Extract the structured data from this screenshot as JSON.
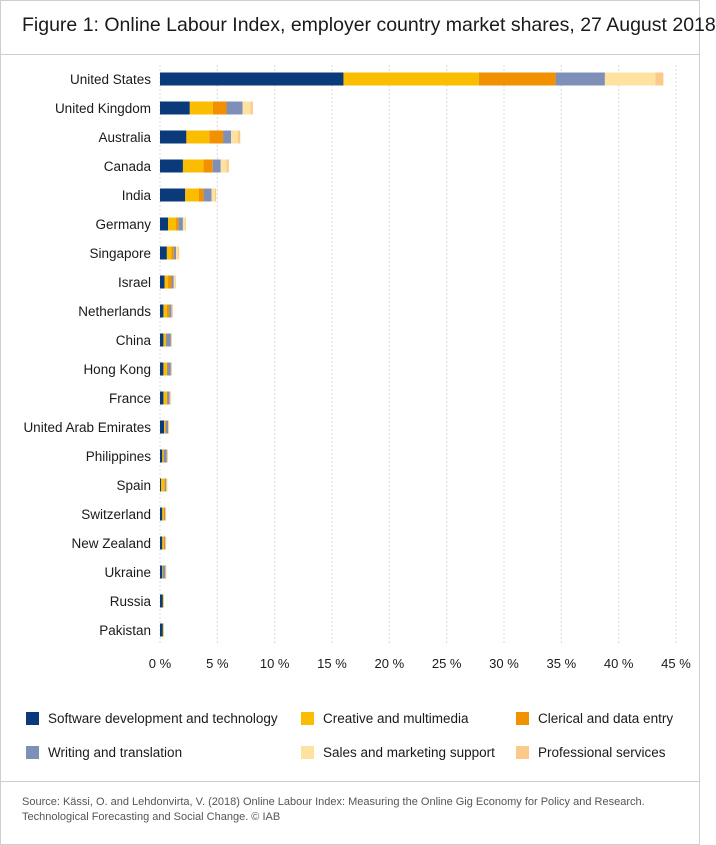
{
  "title": "Figure 1: Online Labour Index, employer country market shares, 27 August 2018",
  "source": "Source: Kässi, O. and Lehdonvirta, V. (2018) Online Labour Index: Measuring the Online Gig Economy for Policy and Research. Technological Forecasting and Social Change. © IAB",
  "chart_data": {
    "type": "bar",
    "orientation": "horizontal",
    "stacked": true,
    "title": "Figure 1: Online Labour Index, employer country market shares, 27 August 2018",
    "xlabel": "",
    "ylabel": "",
    "xlim": [
      0,
      45
    ],
    "x_ticks": [
      "0 %",
      "5 %",
      "10 %",
      "15 %",
      "20 %",
      "25 %",
      "30 %",
      "35 %",
      "40 %",
      "45 %"
    ],
    "grid": "vertical",
    "legend_position": "bottom",
    "categories": [
      "United States",
      "United Kingdom",
      "Australia",
      "Canada",
      "India",
      "Germany",
      "Singapore",
      "Israel",
      "Netherlands",
      "China",
      "Hong Kong",
      "France",
      "United Arab Emirates",
      "Philippines",
      "Spain",
      "Switzerland",
      "New Zealand",
      "Ukraine",
      "Russia",
      "Pakistan"
    ],
    "series": [
      {
        "name": "Software development and technology",
        "color": "#0b3a7a",
        "values": [
          16.0,
          2.6,
          2.3,
          2.0,
          2.2,
          0.7,
          0.6,
          0.4,
          0.3,
          0.3,
          0.3,
          0.3,
          0.35,
          0.2,
          0.1,
          0.2,
          0.2,
          0.2,
          0.25,
          0.25
        ]
      },
      {
        "name": "Creative and multimedia",
        "color": "#fbbd00",
        "values": [
          11.8,
          2.0,
          2.0,
          1.8,
          1.2,
          0.7,
          0.4,
          0.3,
          0.3,
          0.2,
          0.3,
          0.3,
          0.1,
          0.1,
          0.3,
          0.15,
          0.15,
          0.05,
          0.05,
          0.05
        ]
      },
      {
        "name": "Clerical and data entry",
        "color": "#f29100",
        "values": [
          6.7,
          1.2,
          1.2,
          0.8,
          0.4,
          0.2,
          0.2,
          0.3,
          0.2,
          0.05,
          0.05,
          0.05,
          0.05,
          0.05,
          0.05,
          0.05,
          0.05,
          0.02,
          0.0,
          0.0
        ]
      },
      {
        "name": "Writing and translation",
        "color": "#7f90b8",
        "values": [
          4.3,
          1.4,
          0.7,
          0.7,
          0.7,
          0.4,
          0.2,
          0.2,
          0.2,
          0.4,
          0.3,
          0.2,
          0.2,
          0.25,
          0.1,
          0.05,
          0.05,
          0.2,
          0.0,
          0.0
        ]
      },
      {
        "name": "Sales and marketing support",
        "color": "#fde2a0",
        "values": [
          4.4,
          0.7,
          0.6,
          0.5,
          0.3,
          0.2,
          0.2,
          0.1,
          0.05,
          0.02,
          0.02,
          0.02,
          0.02,
          0.02,
          0.02,
          0.02,
          0.02,
          0.01,
          0.0,
          0.0
        ]
      },
      {
        "name": "Professional services",
        "color": "#fbc98a",
        "values": [
          0.7,
          0.2,
          0.2,
          0.2,
          0.1,
          0.05,
          0.05,
          0.05,
          0.02,
          0.02,
          0.02,
          0.02,
          0.02,
          0.01,
          0.01,
          0.01,
          0.01,
          0.01,
          0.0,
          0.0
        ]
      }
    ]
  }
}
